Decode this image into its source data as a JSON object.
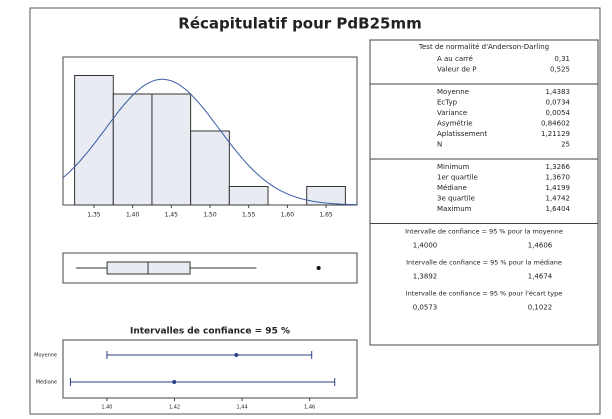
{
  "title": "Récapitulatif pour PdB25mm",
  "chart_data": [
    {
      "type": "histogram",
      "bins": [
        1.325,
        1.375,
        1.425,
        1.475,
        1.525,
        1.575,
        1.625,
        1.675
      ],
      "values": [
        7,
        6,
        6,
        4,
        1,
        0,
        1
      ],
      "color": "#e8ecf2",
      "mean": 1.4383,
      "sd": 0.0734,
      "curve_color": "#3b5ba8",
      "xlim": [
        1.31,
        1.69
      ],
      "ylim": [
        0,
        8
      ],
      "xticks": [
        {
          "value": 1.35,
          "label": "1,35"
        },
        {
          "value": 1.4,
          "label": "1,40"
        },
        {
          "value": 1.45,
          "label": "1,45"
        },
        {
          "value": 1.5,
          "label": "1,50"
        },
        {
          "value": 1.55,
          "label": "1,55"
        },
        {
          "value": 1.6,
          "label": "1,60"
        },
        {
          "value": 1.65,
          "label": "1,65"
        }
      ]
    },
    {
      "type": "boxplot",
      "xlim": [
        1.31,
        1.69
      ],
      "min": 1.3266,
      "q1": 1.367,
      "median": 1.4199,
      "q3": 1.4742,
      "whisker_high": 1.56,
      "outliers": [
        1.6404
      ],
      "color": "#e8ecf2"
    },
    {
      "type": "interval",
      "title": "Intervalles de confiance = 95 %",
      "categories": [
        "Moyenne",
        "Médiane"
      ],
      "values": [
        1.4383,
        1.4199
      ],
      "lower": [
        1.4,
        1.3892
      ],
      "upper": [
        1.4606,
        1.4674
      ],
      "color": "#2b3f86",
      "xlim": [
        1.387,
        1.474
      ],
      "xticks": [
        {
          "value": 1.4,
          "label": "1,40"
        },
        {
          "value": 1.42,
          "label": "1,42"
        },
        {
          "value": 1.44,
          "label": "1,44"
        },
        {
          "value": 1.46,
          "label": "1,46"
        }
      ]
    }
  ],
  "table": {
    "sections": [
      {
        "heading": "Test de normalité d'Anderson-Darling",
        "rows": [
          [
            "A au carré",
            "0,31"
          ],
          [
            "Valeur de P",
            "0,525"
          ]
        ]
      },
      {
        "rows": [
          [
            "Moyenne",
            "1,4383"
          ],
          [
            "EcTyp",
            "0,0734"
          ],
          [
            "Variance",
            "0,0054"
          ],
          [
            "Asymétrie",
            "0,84602"
          ],
          [
            "Aplatissement",
            "1,21129"
          ],
          [
            "N",
            "25"
          ]
        ]
      },
      {
        "rows": [
          [
            "Minimum",
            "1,3266"
          ],
          [
            "1er quartile",
            "1,3670"
          ],
          [
            "Médiane",
            "1,4199"
          ],
          [
            "3e quartile",
            "1,4742"
          ],
          [
            "Maximum",
            "1,6404"
          ]
        ]
      }
    ],
    "intervals": [
      {
        "heading": "Intervalle de confiance = 95 % pour la moyenne",
        "values": [
          "1,4000",
          "1,4606"
        ]
      },
      {
        "heading": "Intervalle de confiance = 95 % pour la médiane",
        "values": [
          "1,3892",
          "1,4674"
        ]
      },
      {
        "heading": "Intervalle de confiance = 95 % pour l'écart type",
        "values": [
          "0,0573",
          "0,1022"
        ]
      }
    ]
  }
}
